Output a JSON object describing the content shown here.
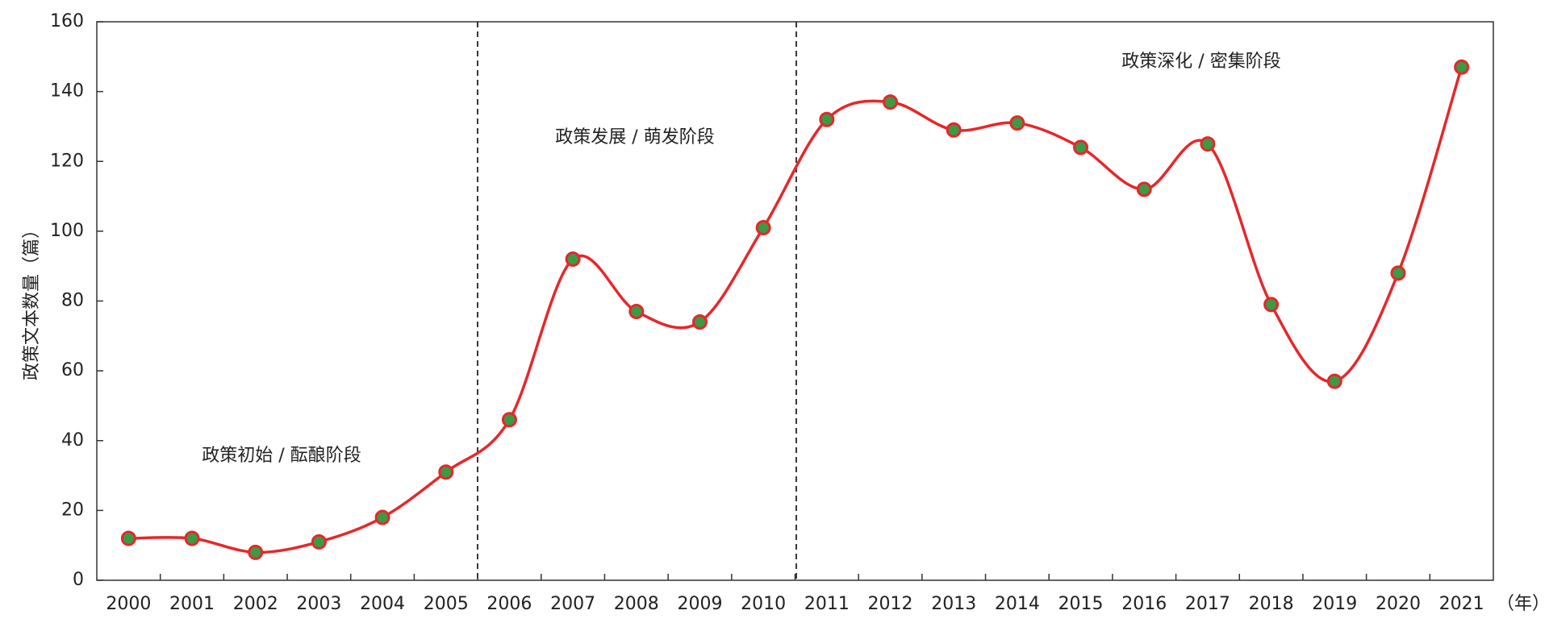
{
  "chart_data": {
    "type": "line",
    "y_label": "政策文本数量（篇）",
    "x_unit": "（年）",
    "categories": [
      "2000",
      "2001",
      "2002",
      "2003",
      "2004",
      "2005",
      "2006",
      "2007",
      "2008",
      "2009",
      "2010",
      "2011",
      "2012",
      "2013",
      "2014",
      "2015",
      "2016",
      "2017",
      "2018",
      "2019",
      "2020",
      "2021"
    ],
    "values": [
      12,
      12,
      8,
      11,
      18,
      31,
      46,
      92,
      77,
      74,
      101,
      132,
      137,
      129,
      131,
      124,
      112,
      125,
      79,
      57,
      88,
      147
    ],
    "color": "#e8262a",
    "marker_color": "#3a9b45",
    "ylim": [
      0,
      160
    ],
    "yticks": [
      0,
      20,
      40,
      60,
      80,
      100,
      120,
      140,
      160
    ],
    "annotations": [
      "政策初始 / 酝酿阶段",
      "政策发展 / 萌发阶段",
      "政策深化 / 密集阶段"
    ]
  }
}
